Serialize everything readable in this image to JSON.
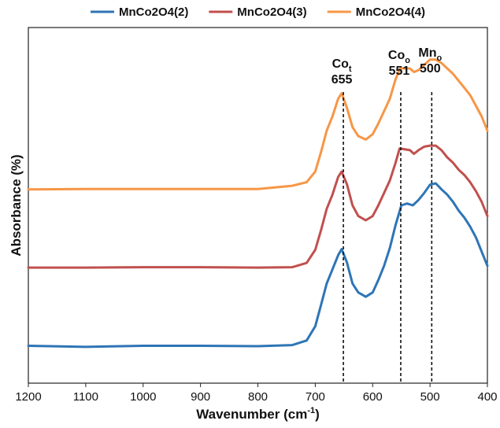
{
  "chart_data": {
    "type": "line",
    "title": "",
    "xlabel": "Wavenumber (cm⁻¹)",
    "ylabel": "Absorbance (%)",
    "xlim": [
      1200,
      400
    ],
    "x_reversed": true,
    "xticks": [
      1200,
      1100,
      1000,
      900,
      800,
      700,
      600,
      500,
      400
    ],
    "ylim": [
      0,
      100
    ],
    "y_ticks_shown": false,
    "grid": false,
    "legend_position": "top",
    "series": [
      {
        "name": "MnCo2O4(2)",
        "color": "#2E75B6",
        "points": [
          [
            1200,
            10.5
          ],
          [
            1100,
            10.2
          ],
          [
            1000,
            10.5
          ],
          [
            900,
            10.5
          ],
          [
            800,
            10.4
          ],
          [
            740,
            10.7
          ],
          [
            715,
            12.0
          ],
          [
            700,
            16.0
          ],
          [
            690,
            22.0
          ],
          [
            680,
            28.0
          ],
          [
            670,
            32.0
          ],
          [
            660,
            36.0
          ],
          [
            654,
            37.7
          ],
          [
            645,
            34.0
          ],
          [
            635,
            28.0
          ],
          [
            625,
            25.5
          ],
          [
            612,
            24.3
          ],
          [
            600,
            25.5
          ],
          [
            590,
            29.0
          ],
          [
            580,
            33.0
          ],
          [
            570,
            38.0
          ],
          [
            560,
            44.5
          ],
          [
            550,
            50.0
          ],
          [
            540,
            50.5
          ],
          [
            530,
            50.0
          ],
          [
            520,
            51.5
          ],
          [
            510,
            53.5
          ],
          [
            500,
            55.8
          ],
          [
            490,
            56.2
          ],
          [
            480,
            54.5
          ],
          [
            470,
            53.0
          ],
          [
            460,
            51.0
          ],
          [
            450,
            48.5
          ],
          [
            440,
            46.5
          ],
          [
            430,
            44.0
          ],
          [
            420,
            41.0
          ],
          [
            410,
            37.0
          ],
          [
            400,
            33.0
          ]
        ]
      },
      {
        "name": "MnCo2O4(3)",
        "color": "#C0504D",
        "points": [
          [
            1200,
            32.5
          ],
          [
            1100,
            32.5
          ],
          [
            1000,
            32.6
          ],
          [
            900,
            32.6
          ],
          [
            800,
            32.5
          ],
          [
            740,
            32.6
          ],
          [
            715,
            33.8
          ],
          [
            700,
            37.5
          ],
          [
            690,
            43.0
          ],
          [
            680,
            49.0
          ],
          [
            670,
            53.0
          ],
          [
            660,
            58.0
          ],
          [
            654,
            59.5
          ],
          [
            645,
            56.0
          ],
          [
            635,
            50.0
          ],
          [
            625,
            47.0
          ],
          [
            612,
            45.8
          ],
          [
            600,
            47.0
          ],
          [
            590,
            50.0
          ],
          [
            580,
            53.5
          ],
          [
            570,
            57.0
          ],
          [
            560,
            62.0
          ],
          [
            553,
            66.0
          ],
          [
            545,
            65.8
          ],
          [
            535,
            65.5
          ],
          [
            528,
            64.5
          ],
          [
            520,
            65.5
          ],
          [
            510,
            66.5
          ],
          [
            500,
            66.8
          ],
          [
            490,
            66.8
          ],
          [
            480,
            65.5
          ],
          [
            470,
            63.5
          ],
          [
            460,
            62.0
          ],
          [
            450,
            60.0
          ],
          [
            440,
            58.5
          ],
          [
            430,
            56.5
          ],
          [
            420,
            54.0
          ],
          [
            410,
            51.0
          ],
          [
            400,
            47.0
          ]
        ]
      },
      {
        "name": "MnCo2O4(4)",
        "color": "#F79646",
        "points": [
          [
            1200,
            54.5
          ],
          [
            1100,
            54.6
          ],
          [
            1000,
            54.6
          ],
          [
            900,
            54.6
          ],
          [
            800,
            54.6
          ],
          [
            740,
            55.5
          ],
          [
            715,
            56.5
          ],
          [
            700,
            59.5
          ],
          [
            690,
            65.0
          ],
          [
            680,
            71.0
          ],
          [
            670,
            75.0
          ],
          [
            660,
            80.0
          ],
          [
            654,
            81.5
          ],
          [
            645,
            77.5
          ],
          [
            635,
            72.0
          ],
          [
            625,
            69.5
          ],
          [
            612,
            68.5
          ],
          [
            600,
            70.0
          ],
          [
            590,
            73.0
          ],
          [
            580,
            76.5
          ],
          [
            570,
            80.0
          ],
          [
            560,
            85.5
          ],
          [
            552,
            88.5
          ],
          [
            545,
            88.5
          ],
          [
            535,
            88.5
          ],
          [
            528,
            87.5
          ],
          [
            520,
            88.0
          ],
          [
            510,
            89.5
          ],
          [
            500,
            91.0
          ],
          [
            490,
            91.0
          ],
          [
            480,
            90.0
          ],
          [
            470,
            88.5
          ],
          [
            460,
            87.0
          ],
          [
            450,
            85.0
          ],
          [
            440,
            83.0
          ],
          [
            430,
            81.0
          ],
          [
            420,
            78.0
          ],
          [
            410,
            75.0
          ],
          [
            400,
            71.0
          ]
        ]
      }
    ],
    "annotations": [
      {
        "element": "Co",
        "sub": "t",
        "value": "655",
        "x": 651
      },
      {
        "element": "Co",
        "sub": "o",
        "value": "551",
        "x": 551
      },
      {
        "element": "Mn",
        "sub": "o",
        "value": "500",
        "x": 497
      }
    ]
  }
}
